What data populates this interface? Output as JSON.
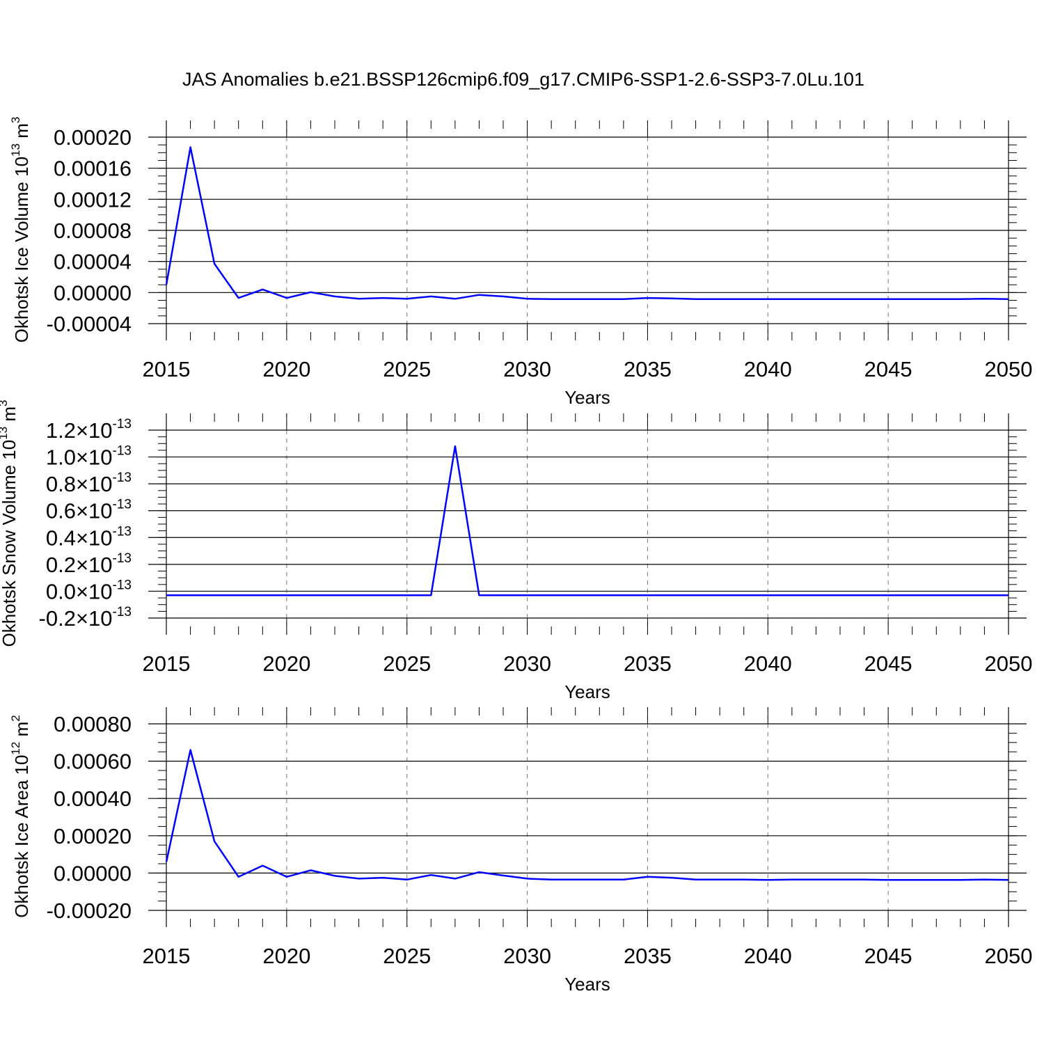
{
  "title": "JAS Anomalies b.e21.BSSP126cmip6.f09_g17.CMIP6-SSP1-2.6-SSP3-7.0Lu.101",
  "colors": {
    "line": "#0000ff",
    "grid": "#777777",
    "axis": "#000000"
  },
  "chart_data": [
    {
      "type": "line",
      "ylabel": "Okhotsk Ice Volume 10",
      "ylabel_exp": "13",
      "ylabel_unit": " m",
      "ylabel_unit_exp": "3",
      "xlabel": "Years",
      "xlim": [
        2015,
        2050
      ],
      "ylim": [
        -4e-05,
        0.0002
      ],
      "x_ticks": [
        "2015",
        "2020",
        "2025",
        "2030",
        "2035",
        "2040",
        "2045",
        "2050"
      ],
      "y_ticks": [
        {
          "value": 0.0002,
          "label": "0.00020"
        },
        {
          "value": 0.00016,
          "label": "0.00016"
        },
        {
          "value": 0.00012,
          "label": "0.00012"
        },
        {
          "value": 8e-05,
          "label": "0.00008"
        },
        {
          "value": 4e-05,
          "label": "0.00004"
        },
        {
          "value": 0.0,
          "label": "0.00000"
        },
        {
          "value": -4e-05,
          "label": "-0.00004"
        }
      ],
      "grid": "x-dashed",
      "x": [
        2015,
        2016,
        2017,
        2018,
        2019,
        2020,
        2021,
        2022,
        2023,
        2024,
        2025,
        2026,
        2027,
        2028,
        2029,
        2030,
        2031,
        2032,
        2033,
        2034,
        2035,
        2036,
        2037,
        2038,
        2039,
        2040,
        2041,
        2042,
        2043,
        2044,
        2045,
        2046,
        2047,
        2048,
        2049,
        2050
      ],
      "values": [
        1e-05,
        0.000187,
        3.7e-05,
        -7e-06,
        4e-06,
        -7e-06,
        5e-07,
        -5e-06,
        -8e-06,
        -7e-06,
        -8e-06,
        -5e-06,
        -8e-06,
        -3e-06,
        -5e-06,
        -8e-06,
        -8.5e-06,
        -8.5e-06,
        -8.5e-06,
        -8.5e-06,
        -7e-06,
        -7.5e-06,
        -8.5e-06,
        -8.5e-06,
        -8.5e-06,
        -8.5e-06,
        -8.5e-06,
        -8.5e-06,
        -8.5e-06,
        -8.5e-06,
        -8.5e-06,
        -8.5e-06,
        -8.5e-06,
        -8.5e-06,
        -8e-06,
        -8.5e-06
      ]
    },
    {
      "type": "line",
      "ylabel": "Okhotsk Snow Volume 10",
      "ylabel_exp": "13",
      "ylabel_unit": " m",
      "ylabel_unit_exp": "3",
      "xlabel": "Years",
      "xlim": [
        2015,
        2050
      ],
      "ylim": [
        -2e-14,
        1.2e-13
      ],
      "x_ticks": [
        "2015",
        "2020",
        "2025",
        "2030",
        "2035",
        "2040",
        "2045",
        "2050"
      ],
      "y_ticks": [
        {
          "value": 1.2e-13,
          "label": "1.2",
          "exp": "-13"
        },
        {
          "value": 1e-13,
          "label": "1.0",
          "exp": "-13"
        },
        {
          "value": 8e-14,
          "label": "0.8",
          "exp": "-13"
        },
        {
          "value": 6e-14,
          "label": "0.6",
          "exp": "-13"
        },
        {
          "value": 4e-14,
          "label": "0.4",
          "exp": "-13"
        },
        {
          "value": 2e-14,
          "label": "0.2",
          "exp": "-13"
        },
        {
          "value": 0.0,
          "label": "0.0",
          "exp": "-13"
        },
        {
          "value": -2e-14,
          "label": "-0.2",
          "exp": "-13"
        }
      ],
      "grid": "x-dashed",
      "x": [
        2015,
        2016,
        2017,
        2018,
        2019,
        2020,
        2021,
        2022,
        2023,
        2024,
        2025,
        2026,
        2027,
        2028,
        2029,
        2030,
        2031,
        2032,
        2033,
        2034,
        2035,
        2036,
        2037,
        2038,
        2039,
        2040,
        2041,
        2042,
        2043,
        2044,
        2045,
        2046,
        2047,
        2048,
        2049,
        2050
      ],
      "values": [
        -3e-15,
        -3e-15,
        -3e-15,
        -3e-15,
        -3e-15,
        -3e-15,
        -3e-15,
        -3e-15,
        -3e-15,
        -3e-15,
        -3e-15,
        -3e-15,
        1.08e-13,
        -3e-15,
        -3e-15,
        -3e-15,
        -3e-15,
        -3e-15,
        -3e-15,
        -3e-15,
        -3e-15,
        -3e-15,
        -3e-15,
        -3e-15,
        -3e-15,
        -3e-15,
        -3e-15,
        -3e-15,
        -3e-15,
        -3e-15,
        -3e-15,
        -3e-15,
        -3e-15,
        -3e-15,
        -3e-15,
        -3e-15
      ]
    },
    {
      "type": "line",
      "ylabel": "Okhotsk Ice Area 10",
      "ylabel_exp": "12",
      "ylabel_unit": " m",
      "ylabel_unit_exp": "2",
      "xlabel": "Years",
      "xlim": [
        2015,
        2050
      ],
      "ylim": [
        -0.0002,
        0.0008
      ],
      "x_ticks": [
        "2015",
        "2020",
        "2025",
        "2030",
        "2035",
        "2040",
        "2045",
        "2050"
      ],
      "y_ticks": [
        {
          "value": 0.0008,
          "label": "0.00080"
        },
        {
          "value": 0.0006,
          "label": "0.00060"
        },
        {
          "value": 0.0004,
          "label": "0.00040"
        },
        {
          "value": 0.0002,
          "label": "0.00020"
        },
        {
          "value": 0.0,
          "label": "0.00000"
        },
        {
          "value": -0.0002,
          "label": "-0.00020"
        }
      ],
      "grid": "x-dashed",
      "x": [
        2015,
        2016,
        2017,
        2018,
        2019,
        2020,
        2021,
        2022,
        2023,
        2024,
        2025,
        2026,
        2027,
        2028,
        2029,
        2030,
        2031,
        2032,
        2033,
        2034,
        2035,
        2036,
        2037,
        2038,
        2039,
        2040,
        2041,
        2042,
        2043,
        2044,
        2045,
        2046,
        2047,
        2048,
        2049,
        2050
      ],
      "values": [
        6e-05,
        0.00066,
        0.00017,
        -2e-05,
        4e-05,
        -2e-05,
        1.5e-05,
        -1.5e-05,
        -3e-05,
        -2.5e-05,
        -3.5e-05,
        -1e-05,
        -3e-05,
        5e-06,
        -1.3e-05,
        -3e-05,
        -3.5e-05,
        -3.5e-05,
        -3.5e-05,
        -3.5e-05,
        -2e-05,
        -2.5e-05,
        -3.5e-05,
        -3.5e-05,
        -3.5e-05,
        -3.7e-05,
        -3.5e-05,
        -3.5e-05,
        -3.5e-05,
        -3.5e-05,
        -3.7e-05,
        -3.7e-05,
        -3.7e-05,
        -3.7e-05,
        -3.5e-05,
        -3.7e-05
      ]
    }
  ]
}
